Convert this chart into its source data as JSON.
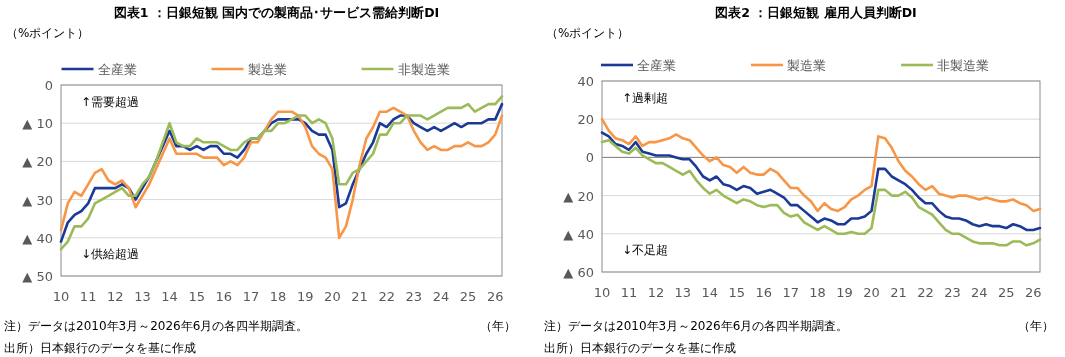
{
  "chart_data": [
    {
      "type": "line",
      "title": "図表1 ：日銀短観 国内での製商品･サービス需給判断DI",
      "ylabel": "（%ポイント）",
      "xlabel": "（年）",
      "annotations": [
        "↑需要超過",
        "↓供給超過",
        "注）データは2010年3月～2026年6月の各四半期調査。",
        "出所）日本銀行のデータを基に作成"
      ],
      "x": [
        "2010-03",
        "2010-06",
        "2010-09",
        "2010-12",
        "2011-03",
        "2011-06",
        "2011-09",
        "2011-12",
        "2012-03",
        "2012-06",
        "2012-09",
        "2012-12",
        "2013-03",
        "2013-06",
        "2013-09",
        "2013-12",
        "2014-03",
        "2014-06",
        "2014-09",
        "2014-12",
        "2015-03",
        "2015-06",
        "2015-09",
        "2015-12",
        "2016-03",
        "2016-06",
        "2016-09",
        "2016-12",
        "2017-03",
        "2017-06",
        "2017-09",
        "2017-12",
        "2018-03",
        "2018-06",
        "2018-09",
        "2018-12",
        "2019-03",
        "2019-06",
        "2019-09",
        "2019-12",
        "2020-03",
        "2020-06",
        "2020-09",
        "2020-12",
        "2021-03",
        "2021-06",
        "2021-09",
        "2021-12",
        "2022-03",
        "2022-06",
        "2022-09",
        "2022-12",
        "2023-03",
        "2023-06",
        "2023-09",
        "2023-12",
        "2024-03",
        "2024-06",
        "2024-09",
        "2024-12",
        "2025-03",
        "2025-06",
        "2025-09",
        "2025-12",
        "2026-03",
        "2026-06"
      ],
      "series": [
        {
          "name": "全産業",
          "color": "#1a3a96",
          "values": [
            -41,
            -36,
            -34,
            -33,
            -31,
            -27,
            -27,
            -27,
            -27,
            -26,
            -27,
            -30,
            -27,
            -24,
            -20,
            -16,
            -12,
            -16,
            -16,
            -17,
            -16,
            -17,
            -16,
            -16,
            -18,
            -18,
            -19,
            -17,
            -14,
            -14,
            -12,
            -10,
            -9,
            -9,
            -9,
            -9,
            -10,
            -12,
            -13,
            -13,
            -17,
            -32,
            -31,
            -26,
            -22,
            -18,
            -15,
            -10,
            -11,
            -9,
            -8,
            -8,
            -10,
            -11,
            -12,
            -11,
            -12,
            -11,
            -10,
            -11,
            -10,
            -10,
            -10,
            -9,
            -9,
            -5
          ]
        },
        {
          "name": "製造業",
          "color": "#f79646",
          "values": [
            -38,
            -31,
            -28,
            -29,
            -26,
            -23,
            -22,
            -25,
            -26,
            -25,
            -27,
            -32,
            -29,
            -26,
            -22,
            -18,
            -14,
            -18,
            -18,
            -18,
            -18,
            -19,
            -19,
            -19,
            -21,
            -20,
            -21,
            -19,
            -15,
            -15,
            -12,
            -9,
            -7,
            -7,
            -7,
            -8,
            -11,
            -16,
            -18,
            -19,
            -22,
            -40,
            -37,
            -30,
            -21,
            -14,
            -11,
            -7,
            -7,
            -6,
            -7,
            -8,
            -12,
            -15,
            -17,
            -16,
            -17,
            -17,
            -16,
            -16,
            -15,
            -16,
            -16,
            -15,
            -13,
            -8
          ]
        },
        {
          "name": "非製造業",
          "color": "#9bbb59",
          "values": [
            -43,
            -41,
            -37,
            -37,
            -35,
            -31,
            -30,
            -29,
            -28,
            -27,
            -29,
            -29,
            -26,
            -24,
            -20,
            -15,
            -10,
            -15,
            -16,
            -16,
            -14,
            -15,
            -15,
            -15,
            -16,
            -17,
            -17,
            -15,
            -14,
            -14,
            -12,
            -12,
            -10,
            -10,
            -9,
            -8,
            -8,
            -10,
            -9,
            -10,
            -14,
            -26,
            -26,
            -23,
            -22,
            -20,
            -18,
            -13,
            -13,
            -10,
            -10,
            -8,
            -8,
            -8,
            -9,
            -8,
            -7,
            -6,
            -6,
            -6,
            -5,
            -7,
            -6,
            -5,
            -5,
            -3
          ]
        }
      ],
      "xlim": [
        "2010-03",
        "2026-06"
      ],
      "xticks": [
        {
          "value": "2010-03",
          "label": "10"
        },
        {
          "value": "2011-03",
          "label": "11"
        },
        {
          "value": "2012-03",
          "label": "12"
        },
        {
          "value": "2013-03",
          "label": "13"
        },
        {
          "value": "2014-03",
          "label": "14"
        },
        {
          "value": "2015-03",
          "label": "15"
        },
        {
          "value": "2016-03",
          "label": "16"
        },
        {
          "value": "2017-03",
          "label": "17"
        },
        {
          "value": "2018-03",
          "label": "18"
        },
        {
          "value": "2019-03",
          "label": "19"
        },
        {
          "value": "2020-03",
          "label": "20"
        },
        {
          "value": "2021-03",
          "label": "21"
        },
        {
          "value": "2022-03",
          "label": "22"
        },
        {
          "value": "2023-03",
          "label": "23"
        },
        {
          "value": "2024-03",
          "label": "24"
        },
        {
          "value": "2025-03",
          "label": "25"
        },
        {
          "value": "2026-03",
          "label": "26"
        }
      ],
      "ylim": [
        -50,
        0
      ],
      "yticks": [
        0,
        {
          "value": -10,
          "label": "▲ 10"
        },
        {
          "value": -20,
          "label": "▲ 20"
        },
        {
          "value": -30,
          "label": "▲ 30"
        },
        {
          "value": -40,
          "label": "▲ 40"
        },
        {
          "value": -50,
          "label": "▲ 50"
        }
      ],
      "grid": "y",
      "legend": "top",
      "marker": "none",
      "line_style": "solid"
    },
    {
      "type": "line",
      "title": "図表2 ：日銀短観 雇用人員判断DI",
      "ylabel": "（%ポイント）",
      "xlabel": "（年）",
      "annotations": [
        "↑過剰超",
        "↓不足超",
        "注）データは2010年3月～2026年6月の各四半期調査。",
        "出所）日本銀行のデータを基に作成"
      ],
      "x": [
        "2010-03",
        "2010-06",
        "2010-09",
        "2010-12",
        "2011-03",
        "2011-06",
        "2011-09",
        "2011-12",
        "2012-03",
        "2012-06",
        "2012-09",
        "2012-12",
        "2013-03",
        "2013-06",
        "2013-09",
        "2013-12",
        "2014-03",
        "2014-06",
        "2014-09",
        "2014-12",
        "2015-03",
        "2015-06",
        "2015-09",
        "2015-12",
        "2016-03",
        "2016-06",
        "2016-09",
        "2016-12",
        "2017-03",
        "2017-06",
        "2017-09",
        "2017-12",
        "2018-03",
        "2018-06",
        "2018-09",
        "2018-12",
        "2019-03",
        "2019-06",
        "2019-09",
        "2019-12",
        "2020-03",
        "2020-06",
        "2020-09",
        "2020-12",
        "2021-03",
        "2021-06",
        "2021-09",
        "2021-12",
        "2022-03",
        "2022-06",
        "2022-09",
        "2022-12",
        "2023-03",
        "2023-06",
        "2023-09",
        "2023-12",
        "2024-03",
        "2024-06",
        "2024-09",
        "2024-12",
        "2025-03",
        "2025-06",
        "2025-09",
        "2025-12",
        "2026-03",
        "2026-06"
      ],
      "series": [
        {
          "name": "全産業",
          "color": "#1a3a96",
          "values": [
            13,
            11,
            7,
            6,
            4,
            8,
            3,
            2,
            1,
            1,
            1,
            0,
            -1,
            -1,
            -5,
            -10,
            -12,
            -10,
            -14,
            -15,
            -17,
            -15,
            -16,
            -19,
            -18,
            -17,
            -19,
            -21,
            -25,
            -25,
            -28,
            -31,
            -34,
            -32,
            -33,
            -35,
            -35,
            -32,
            -32,
            -31,
            -28,
            -6,
            -6,
            -10,
            -12,
            -14,
            -17,
            -21,
            -24,
            -24,
            -28,
            -31,
            -32,
            -32,
            -33,
            -35,
            -36,
            -35,
            -36,
            -36,
            -37,
            -35,
            -36,
            -38,
            -38,
            -37
          ]
        },
        {
          "name": "製造業",
          "color": "#f79646",
          "values": [
            20,
            14,
            10,
            9,
            7,
            11,
            6,
            8,
            8,
            9,
            10,
            12,
            10,
            9,
            5,
            1,
            -2,
            0,
            -4,
            -5,
            -8,
            -5,
            -8,
            -9,
            -9,
            -6,
            -8,
            -12,
            -16,
            -16,
            -20,
            -23,
            -28,
            -24,
            -27,
            -28,
            -26,
            -22,
            -20,
            -17,
            -15,
            11,
            10,
            5,
            -2,
            -7,
            -10,
            -14,
            -17,
            -15,
            -19,
            -20,
            -21,
            -20,
            -20,
            -21,
            -22,
            -21,
            -22,
            -23,
            -23,
            -22,
            -24,
            -25,
            -28,
            -27
          ]
        },
        {
          "name": "非製造業",
          "color": "#9bbb59",
          "values": [
            8,
            9,
            6,
            3,
            2,
            5,
            1,
            -1,
            -3,
            -3,
            -5,
            -7,
            -9,
            -7,
            -12,
            -16,
            -19,
            -17,
            -20,
            -22,
            -24,
            -22,
            -23,
            -25,
            -26,
            -25,
            -25,
            -29,
            -31,
            -30,
            -34,
            -36,
            -38,
            -36,
            -38,
            -40,
            -40,
            -39,
            -40,
            -40,
            -37,
            -17,
            -17,
            -20,
            -20,
            -18,
            -21,
            -26,
            -28,
            -30,
            -34,
            -38,
            -40,
            -40,
            -42,
            -44,
            -45,
            -45,
            -45,
            -46,
            -46,
            -44,
            -44,
            -46,
            -45,
            -43
          ]
        }
      ],
      "xlim": [
        "2010-03",
        "2026-06"
      ],
      "xticks": [
        {
          "value": "2010-03",
          "label": "10"
        },
        {
          "value": "2011-03",
          "label": "11"
        },
        {
          "value": "2012-03",
          "label": "12"
        },
        {
          "value": "2013-03",
          "label": "13"
        },
        {
          "value": "2014-03",
          "label": "14"
        },
        {
          "value": "2015-03",
          "label": "15"
        },
        {
          "value": "2016-03",
          "label": "16"
        },
        {
          "value": "2017-03",
          "label": "17"
        },
        {
          "value": "2018-03",
          "label": "18"
        },
        {
          "value": "2019-03",
          "label": "19"
        },
        {
          "value": "2020-03",
          "label": "20"
        },
        {
          "value": "2021-03",
          "label": "21"
        },
        {
          "value": "2022-03",
          "label": "22"
        },
        {
          "value": "2023-03",
          "label": "23"
        },
        {
          "value": "2024-03",
          "label": "24"
        },
        {
          "value": "2025-03",
          "label": "25"
        },
        {
          "value": "2026-03",
          "label": "26"
        }
      ],
      "ylim": [
        -60,
        40
      ],
      "yticks": [
        40,
        20,
        0,
        {
          "value": -20,
          "label": "▲ 20"
        },
        {
          "value": -40,
          "label": "▲ 40"
        },
        {
          "value": -60,
          "label": "▲ 60"
        }
      ],
      "ref_lines": [
        {
          "axis": "y",
          "value": 0,
          "color": "#808080"
        }
      ],
      "grid": "y",
      "legend": "top",
      "marker": "none",
      "line_style": "solid"
    }
  ]
}
